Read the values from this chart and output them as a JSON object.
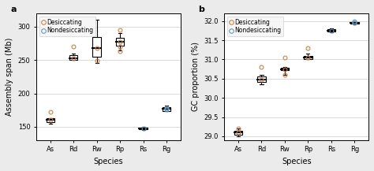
{
  "panel_a": {
    "title": "a",
    "xlabel": "Species",
    "ylabel": "Assembly span (Mb)",
    "ylim": [
      130,
      320
    ],
    "yticks": [
      150,
      200,
      250,
      300
    ],
    "species": [
      "As",
      "Rd",
      "Rw",
      "Rp",
      "Rs",
      "Rg"
    ],
    "boxes": [
      {
        "median": 160,
        "q1": 157,
        "q3": 163,
        "whislo": 155,
        "whishi": 163,
        "fliers": [
          172
        ],
        "type": "desiccating"
      },
      {
        "median": 253,
        "q1": 250,
        "q3": 257,
        "whislo": 250,
        "whishi": 260,
        "fliers": [
          270
        ],
        "type": "desiccating"
      },
      {
        "median": 268,
        "q1": 255,
        "q3": 285,
        "whislo": 245,
        "whishi": 310,
        "fliers": [
          249
        ],
        "type": "desiccating"
      },
      {
        "median": 278,
        "q1": 272,
        "q3": 283,
        "whislo": 265,
        "whishi": 290,
        "fliers": [
          295,
          263,
          270
        ],
        "type": "desiccating"
      },
      {
        "median": 148,
        "q1": 146,
        "q3": 149,
        "whislo": 145,
        "whishi": 150,
        "fliers": [],
        "type": "nondesiccating"
      },
      {
        "median": 177,
        "q1": 174,
        "q3": 180,
        "whislo": 173,
        "whishi": 182,
        "fliers": [
          176,
          178
        ],
        "type": "nondesiccating"
      }
    ]
  },
  "panel_b": {
    "title": "b",
    "xlabel": "Species",
    "ylabel": "GC proportion (%)",
    "ylim": [
      28.9,
      32.2
    ],
    "yticks": [
      29.0,
      29.5,
      30.0,
      30.5,
      31.0,
      31.5,
      32.0
    ],
    "species": [
      "As",
      "Rd",
      "Rw",
      "Rp",
      "Rs",
      "Rg"
    ],
    "boxes": [
      {
        "median": 29.1,
        "q1": 29.05,
        "q3": 29.15,
        "whislo": 29.0,
        "whishi": 29.2,
        "fliers": [
          29.2
        ],
        "type": "desiccating"
      },
      {
        "median": 30.47,
        "q1": 30.42,
        "q3": 30.55,
        "whislo": 30.35,
        "whishi": 30.6,
        "fliers": [
          30.8
        ],
        "type": "desiccating"
      },
      {
        "median": 30.75,
        "q1": 30.72,
        "q3": 30.78,
        "whislo": 30.6,
        "whishi": 30.8,
        "fliers": [
          31.05,
          30.6
        ],
        "type": "desiccating"
      },
      {
        "median": 31.05,
        "q1": 31.0,
        "q3": 31.1,
        "whislo": 31.0,
        "whishi": 31.15,
        "fliers": [
          31.3
        ],
        "type": "desiccating"
      },
      {
        "median": 31.75,
        "q1": 31.72,
        "q3": 31.78,
        "whislo": 31.7,
        "whishi": 31.8,
        "fliers": [],
        "type": "nondesiccating"
      },
      {
        "median": 31.95,
        "q1": 31.93,
        "q3": 31.98,
        "whislo": 31.93,
        "whishi": 32.0,
        "fliers": [
          31.95,
          32.0
        ],
        "type": "nondesiccating"
      }
    ]
  },
  "legend": {
    "desiccating_color": "#c8844a",
    "nondesiccating_color": "#6699bb",
    "desiccating_label": "Desiccating",
    "nondesiccating_label": "Nondesiccating"
  },
  "bg_color": "#ebebeb",
  "plot_bg": "#ffffff"
}
